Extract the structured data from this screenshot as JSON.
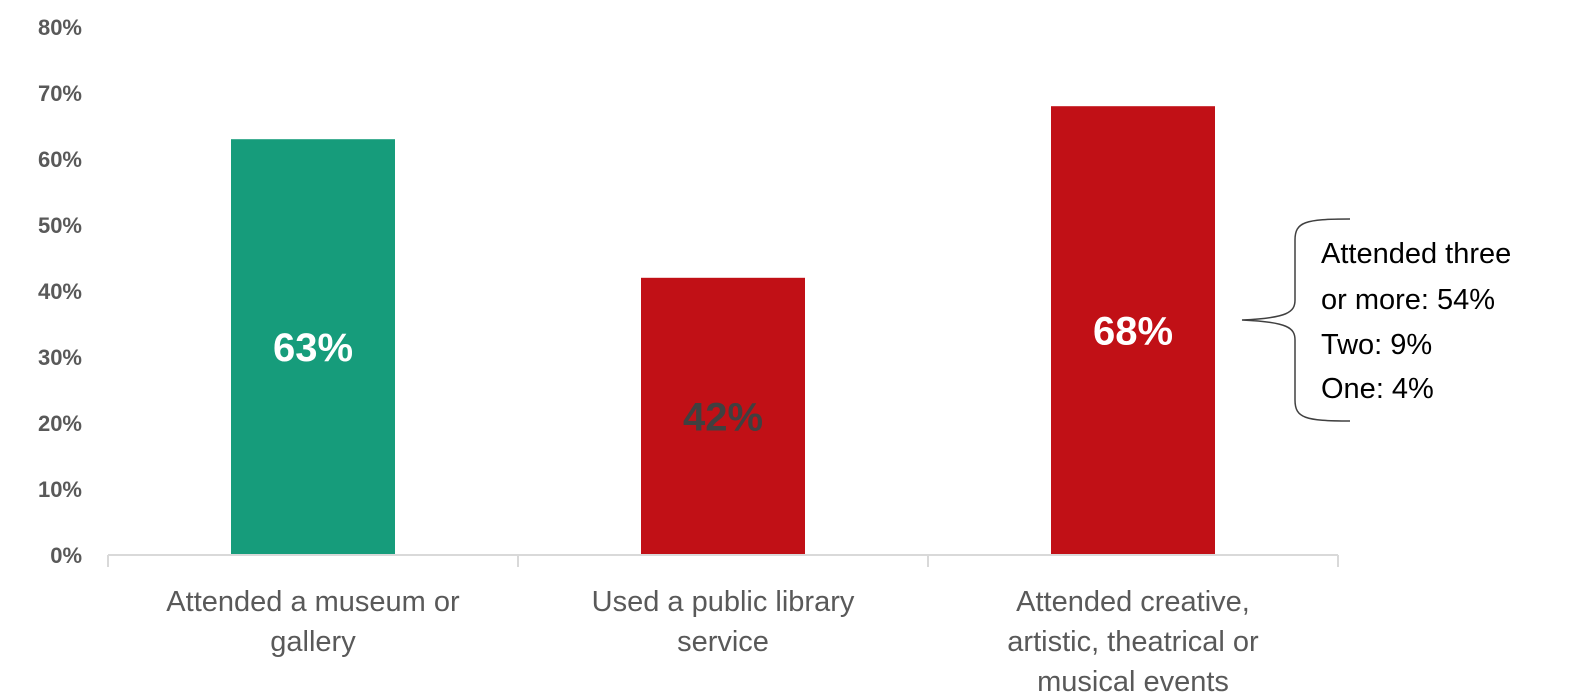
{
  "chart_data": {
    "type": "bar",
    "categories": [
      [
        "Attended a museum or",
        "gallery"
      ],
      [
        "Used a public library",
        "service"
      ],
      [
        "Attended creative,",
        "artistic, theatrical or",
        "musical events"
      ]
    ],
    "values": [
      63,
      42,
      68
    ],
    "data_labels": [
      "63%",
      "42%",
      "68%"
    ],
    "bar_colors": [
      "#169C7B",
      "#C11016",
      "#C11016"
    ],
    "label_colors": [
      "#FFFFFF",
      "#404040",
      "#FFFFFF"
    ],
    "ylim": [
      0,
      80
    ],
    "yticks": [
      "0%",
      "10%",
      "20%",
      "30%",
      "40%",
      "50%",
      "60%",
      "70%",
      "80%"
    ],
    "title": "",
    "xlabel": "",
    "ylabel": "",
    "grid": false,
    "annotation": {
      "lines": [
        "Attended three",
        "or more: 54%",
        "Two: 9%",
        "One: 4%"
      ],
      "applies_to_category": 2
    }
  }
}
